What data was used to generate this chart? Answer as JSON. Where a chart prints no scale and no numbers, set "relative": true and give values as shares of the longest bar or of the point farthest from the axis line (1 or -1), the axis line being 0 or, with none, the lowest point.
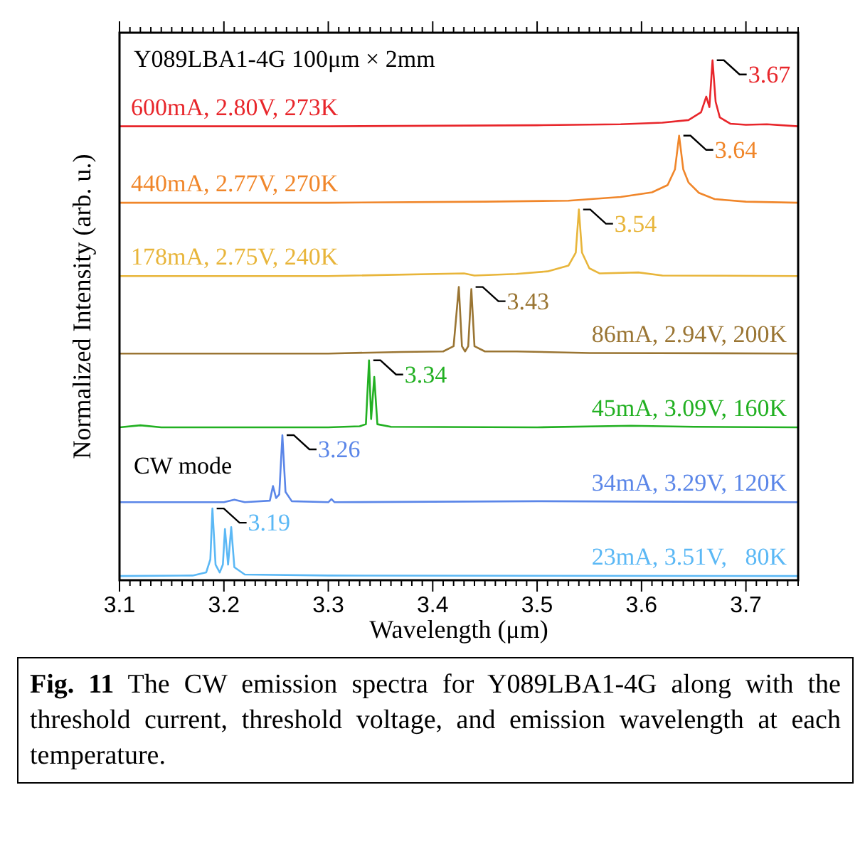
{
  "chart_data": {
    "type": "line",
    "relative": true,
    "xlabel": "Wavelength (μm)",
    "ylabel": "Normalized Intensity (arb. u.)",
    "xlim": [
      3.1,
      3.75
    ],
    "xticks": [
      3.1,
      {
        "value": 3.11,
        "label": null
      },
      {
        "value": 3.12,
        "label": null
      },
      {
        "value": 3.13,
        "label": null
      },
      {
        "value": 3.14,
        "label": null
      },
      {
        "value": 3.15,
        "label": null
      },
      {
        "value": 3.16,
        "label": null
      },
      {
        "value": 3.17,
        "label": null
      },
      {
        "value": 3.18,
        "label": null
      },
      {
        "value": 3.19,
        "label": null
      },
      3.2,
      {
        "value": 3.21,
        "label": null
      },
      {
        "value": 3.22,
        "label": null
      },
      {
        "value": 3.23,
        "label": null
      },
      {
        "value": 3.24,
        "label": null
      },
      {
        "value": 3.25,
        "label": null
      },
      {
        "value": 3.26,
        "label": null
      },
      {
        "value": 3.27,
        "label": null
      },
      {
        "value": 3.28,
        "label": null
      },
      {
        "value": 3.29,
        "label": null
      },
      3.3,
      {
        "value": 3.31,
        "label": null
      },
      {
        "value": 3.32,
        "label": null
      },
      {
        "value": 3.33,
        "label": null
      },
      {
        "value": 3.34,
        "label": null
      },
      {
        "value": 3.35,
        "label": null
      },
      {
        "value": 3.36,
        "label": null
      },
      {
        "value": 3.37,
        "label": null
      },
      {
        "value": 3.38,
        "label": null
      },
      {
        "value": 3.39,
        "label": null
      },
      3.4,
      {
        "value": 3.41,
        "label": null
      },
      {
        "value": 3.42,
        "label": null
      },
      {
        "value": 3.43,
        "label": null
      },
      {
        "value": 3.44,
        "label": null
      },
      {
        "value": 3.45,
        "label": null
      },
      {
        "value": 3.46,
        "label": null
      },
      {
        "value": 3.47,
        "label": null
      },
      {
        "value": 3.48,
        "label": null
      },
      {
        "value": 3.49,
        "label": null
      },
      3.5,
      {
        "value": 3.51,
        "label": null
      },
      {
        "value": 3.52,
        "label": null
      },
      {
        "value": 3.53,
        "label": null
      },
      {
        "value": 3.54,
        "label": null
      },
      {
        "value": 3.55,
        "label": null
      },
      {
        "value": 3.56,
        "label": null
      },
      {
        "value": 3.57,
        "label": null
      },
      {
        "value": 3.58,
        "label": null
      },
      {
        "value": 3.59,
        "label": null
      },
      3.6,
      {
        "value": 3.61,
        "label": null
      },
      {
        "value": 3.62,
        "label": null
      },
      {
        "value": 3.63,
        "label": null
      },
      {
        "value": 3.64,
        "label": null
      },
      {
        "value": 3.65,
        "label": null
      },
      {
        "value": 3.66,
        "label": null
      },
      {
        "value": 3.67,
        "label": null
      },
      {
        "value": 3.68,
        "label": null
      },
      {
        "value": 3.69,
        "label": null
      },
      3.7,
      {
        "value": 3.71,
        "label": null
      },
      {
        "value": 3.72,
        "label": null
      },
      {
        "value": 3.73,
        "label": null
      },
      {
        "value": 3.74,
        "label": null
      },
      {
        "value": 3.75,
        "label": null
      }
    ],
    "legend": false,
    "marker": "none",
    "line_style": "solid",
    "series": [
      {
        "name": "600mA, 2.80V, 273K",
        "color": "#e8262b",
        "x": [
          3.1,
          3.3,
          3.5,
          3.58,
          3.62,
          3.645,
          3.657,
          3.662,
          3.665,
          3.668,
          3.671,
          3.675,
          3.685,
          3.7,
          3.72,
          3.75
        ],
        "values": [
          0.873,
          0.873,
          0.875,
          0.877,
          0.88,
          0.885,
          0.9,
          0.93,
          0.91,
          1.0,
          0.92,
          0.89,
          0.878,
          0.876,
          0.877,
          0.873
        ]
      },
      {
        "name": "440mA, 2.77V, 270K",
        "color": "#f0862a",
        "x": [
          3.1,
          3.3,
          3.45,
          3.53,
          3.58,
          3.61,
          3.625,
          3.632,
          3.636,
          3.64,
          3.645,
          3.655,
          3.67,
          3.7,
          3.75
        ],
        "values": [
          0.726,
          0.726,
          0.728,
          0.73,
          0.737,
          0.746,
          0.76,
          0.79,
          0.855,
          0.79,
          0.765,
          0.745,
          0.733,
          0.728,
          0.726
        ]
      },
      {
        "name": "178mA, 2.75V, 240K",
        "color": "#e8b53a",
        "x": [
          3.1,
          3.3,
          3.43,
          3.44,
          3.48,
          3.51,
          3.53,
          3.537,
          3.54,
          3.543,
          3.55,
          3.56,
          3.597,
          3.62,
          3.75
        ],
        "values": [
          0.585,
          0.585,
          0.59,
          0.586,
          0.589,
          0.594,
          0.605,
          0.63,
          0.713,
          0.63,
          0.6,
          0.59,
          0.592,
          0.586,
          0.585
        ]
      },
      {
        "name": "86mA, 2.94V, 200K",
        "color": "#9a7533",
        "x": [
          3.1,
          3.3,
          3.37,
          3.41,
          3.42,
          3.425,
          3.428,
          3.431,
          3.434,
          3.437,
          3.44,
          3.45,
          3.48,
          3.55,
          3.75
        ],
        "values": [
          0.436,
          0.436,
          0.439,
          0.44,
          0.45,
          0.564,
          0.45,
          0.44,
          0.45,
          0.56,
          0.45,
          0.44,
          0.44,
          0.437,
          0.436
        ]
      },
      {
        "name": "45mA, 3.09V, 160K",
        "color": "#22b022",
        "x": [
          3.1,
          3.12,
          3.14,
          3.3,
          3.33,
          3.336,
          3.339,
          3.341,
          3.344,
          3.347,
          3.36,
          3.5,
          3.59,
          3.65,
          3.75
        ],
        "values": [
          0.294,
          0.298,
          0.294,
          0.294,
          0.296,
          0.3,
          0.423,
          0.31,
          0.391,
          0.3,
          0.295,
          0.294,
          0.297,
          0.295,
          0.294
        ]
      },
      {
        "name": "34mA, 3.29V, 120K",
        "color": "#5b86e8",
        "x": [
          3.1,
          3.2,
          3.21,
          3.22,
          3.244,
          3.247,
          3.25,
          3.253,
          3.256,
          3.259,
          3.265,
          3.3,
          3.303,
          3.306,
          3.5,
          3.75
        ],
        "values": [
          0.15,
          0.15,
          0.155,
          0.15,
          0.153,
          0.181,
          0.158,
          0.165,
          0.279,
          0.17,
          0.152,
          0.15,
          0.156,
          0.15,
          0.152,
          0.15
        ]
      },
      {
        "name": "23mA, 3.51V,   80K",
        "color": "#5bb8f5",
        "x": [
          3.1,
          3.17,
          3.183,
          3.187,
          3.189,
          3.192,
          3.196,
          3.199,
          3.201,
          3.204,
          3.207,
          3.21,
          3.22,
          3.3,
          3.75
        ],
        "values": [
          0.008,
          0.009,
          0.015,
          0.04,
          0.138,
          0.03,
          0.015,
          0.03,
          0.0985,
          0.03,
          0.102,
          0.025,
          0.011,
          0.009,
          0.008
        ]
      }
    ],
    "annotations": [
      "Y089LBA1-4G 100μm × 2mm",
      "CW mode",
      "Fig. 11 The CW emission spectra for Y089LBA1-4G along with the threshold current, threshold voltage, and emission wavelength at each temperature.",
      {
        "text": "3.67",
        "x": 3.668,
        "y": 1.0
      },
      {
        "text": "3.64",
        "x": 3.636,
        "y": 0.855
      },
      {
        "text": "3.54",
        "x": 3.54,
        "y": 0.713
      },
      {
        "text": "3.43",
        "x": 3.437,
        "y": 0.564
      },
      {
        "text": "3.34",
        "x": 3.339,
        "y": 0.423
      },
      {
        "text": "3.26",
        "x": 3.256,
        "y": 0.279
      },
      {
        "text": "3.19",
        "x": 3.189,
        "y": 0.138
      }
    ]
  }
}
